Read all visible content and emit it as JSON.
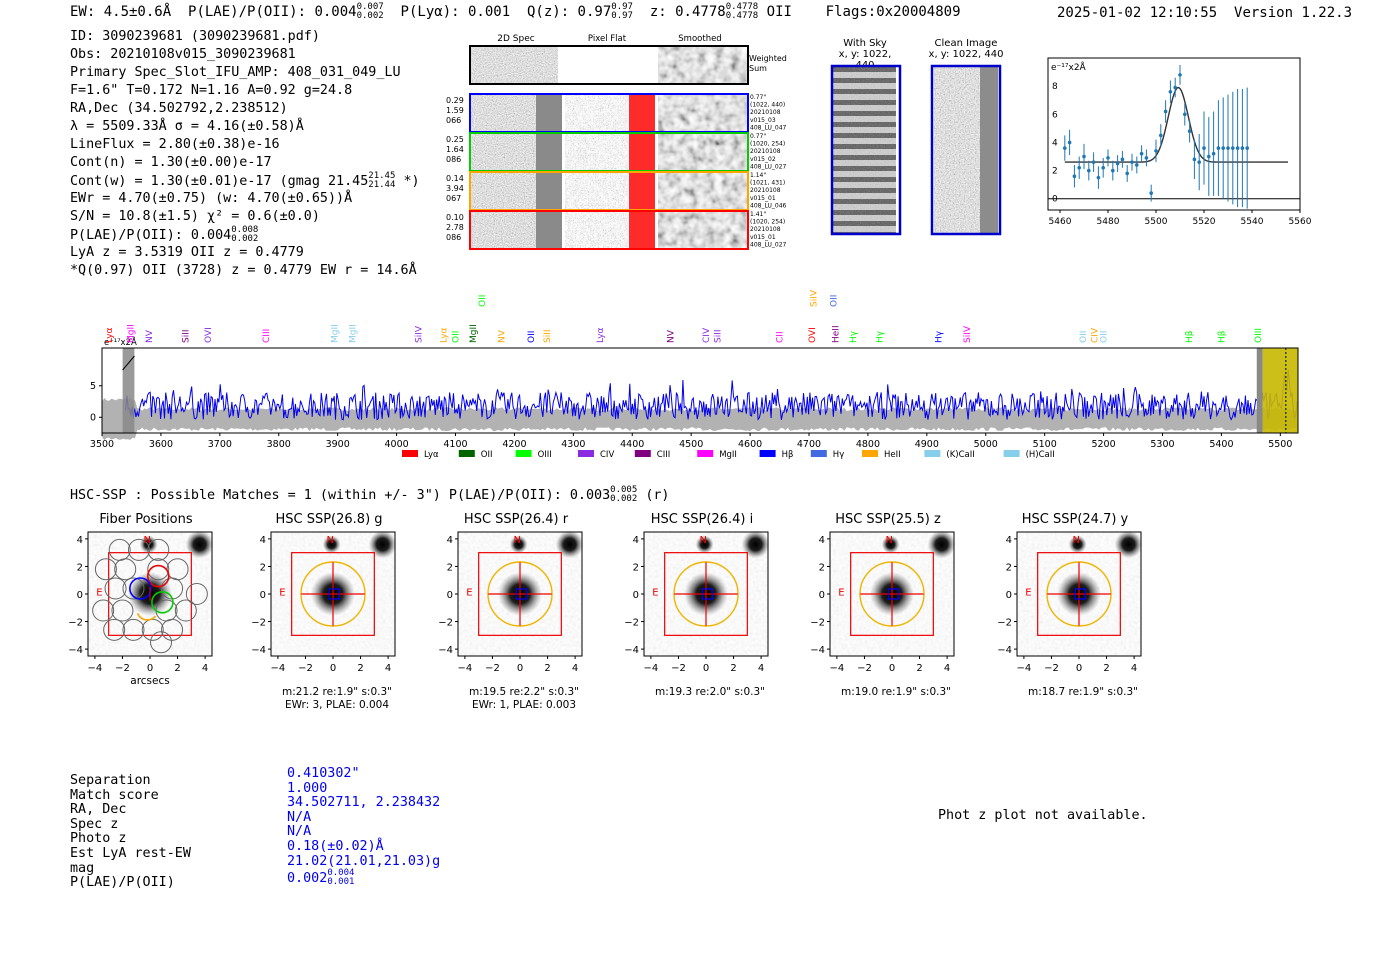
{
  "header": {
    "ew": "EW: 4.5±0.6Å",
    "plae": "P(LAE)/P(OII): 0.004",
    "plae_hi": "0.007",
    "plae_lo": "0.002",
    "plya": "P(Lyα): 0.001",
    "qz": "Q(z): 0.97",
    "qz_hi": "0.97",
    "qz_lo": "0.97",
    "z": "z: 0.4778",
    "z_hi": "0.4778",
    "z_lo": "0.4778",
    "z_line": "OII",
    "flags": "Flags:0x20004809",
    "datetime": "2025-01-02 12:10:55",
    "version": "Version 1.22.3"
  },
  "info": {
    "id": "ID: 3090239681 (3090239681.pdf)",
    "obs": "Obs: 20210108v015_3090239681",
    "primary": "Primary Spec_Slot_IFU_AMP: 408_031_049_LU",
    "params": "F=1.6\"  T=0.172  N=1.16  A=0.92  g=24.8",
    "radec": "RA,Dec (34.502792,2.238512)",
    "lambda": "λ = 5509.33Å  σ = 4.16(±0.58)Å",
    "lineflux": "LineFlux = 2.80(±0.38)e-16",
    "contn": "Cont(n) = 1.30(±0.00)e-17",
    "contw": "Cont(w) = 1.30(±0.01)e-17 (gmag 21.45",
    "contw_hi": "21.45",
    "contw_lo": "21.44",
    "contw_end": "*)",
    "ewr": "EWr = 4.70(±0.75) (w: 4.70(±0.65))Å",
    "sn": "S/N = 10.8(±1.5)  χ² = 0.6(±0.0)",
    "plae": "P(LAE)/P(OII): 0.004",
    "plae_hi": "0.008",
    "plae_lo": "0.002",
    "lyaz": "LyA z = 3.5319  OII z = 0.4779",
    "q": "*Q(0.97) OII (3728) z = 0.4779  EW r = 14.6Å"
  },
  "cutouts": {
    "col_titles": [
      "2D Spec",
      "Pixel Flat",
      "Smoothed"
    ],
    "weighted_label_1": "Weighted",
    "weighted_label_2": "Sum",
    "rows": [
      {
        "left": [
          "0.29",
          "1.59",
          "066"
        ],
        "right": [
          "0.77\"",
          "(1022, 440)",
          "20210108",
          "v015_03",
          "408_LU_047"
        ],
        "color": "#0000ff"
      },
      {
        "left": [
          "0.25",
          "1.64",
          "086"
        ],
        "right": [
          "0.77\"",
          "(1020, 254)",
          "20210108",
          "v015_02",
          "408_LU_027"
        ],
        "color": "#00cc00"
      },
      {
        "left": [
          "0.14",
          "3.94",
          "067"
        ],
        "right": [
          "1.14\"",
          "(1021, 431)",
          "20210108",
          "v015_01",
          "408_LU_046"
        ],
        "color": "#ffa500"
      },
      {
        "left": [
          "0.10",
          "2.78",
          "086"
        ],
        "right": [
          "1.41\"",
          "(1020, 254)",
          "20210108",
          "v015_01",
          "408_LU_027"
        ],
        "color": "#ff0000"
      }
    ],
    "with_sky_title": "With Sky",
    "with_sky_coords": "x, y: 1022, 440",
    "clean_title": "Clean Image",
    "clean_coords": "x, y: 1022, 440"
  },
  "zoom_chart_data": {
    "type": "scatter",
    "ylabel_text": "e⁻¹⁷x2Å",
    "xlim": [
      5455,
      5560
    ],
    "ylim": [
      -0.8,
      10
    ],
    "xticks": [
      5460,
      5480,
      5500,
      5520,
      5540,
      5560
    ],
    "yticks": [
      0,
      2,
      4,
      6,
      8
    ],
    "points": [
      [
        5462,
        3.6,
        0.9
      ],
      [
        5464,
        4.0,
        0.9
      ],
      [
        5466,
        1.6,
        0.8
      ],
      [
        5468,
        2.2,
        0.8
      ],
      [
        5470,
        3.0,
        0.9
      ],
      [
        5472,
        2.0,
        0.7
      ],
      [
        5474,
        2.6,
        0.7
      ],
      [
        5476,
        1.5,
        0.8
      ],
      [
        5478,
        2.2,
        0.7
      ],
      [
        5480,
        2.9,
        0.6
      ],
      [
        5482,
        2.0,
        0.7
      ],
      [
        5484,
        2.5,
        0.6
      ],
      [
        5486,
        2.8,
        0.6
      ],
      [
        5488,
        1.8,
        0.6
      ],
      [
        5490,
        2.6,
        0.6
      ],
      [
        5492,
        2.4,
        0.6
      ],
      [
        5494,
        3.2,
        0.6
      ],
      [
        5496,
        2.9,
        0.6
      ],
      [
        5498,
        0.4,
        0.6
      ],
      [
        5500,
        3.4,
        0.8
      ],
      [
        5502,
        4.5,
        0.8
      ],
      [
        5504,
        6.2,
        0.8
      ],
      [
        5506,
        7.6,
        0.8
      ],
      [
        5508,
        7.9,
        0.7
      ],
      [
        5510,
        8.8,
        0.7
      ],
      [
        5512,
        6.0,
        0.8
      ],
      [
        5514,
        4.8,
        0.8
      ],
      [
        5516,
        2.8,
        1.4
      ],
      [
        5518,
        2.6,
        2.0
      ],
      [
        5520,
        3.6,
        2.6
      ],
      [
        5522,
        3.0,
        2.8
      ],
      [
        5524,
        3.2,
        3.0
      ],
      [
        5526,
        3.6,
        3.4
      ],
      [
        5528,
        3.6,
        3.6
      ],
      [
        5530,
        3.6,
        3.8
      ],
      [
        5532,
        3.6,
        4.0
      ],
      [
        5534,
        3.6,
        4.2
      ],
      [
        5536,
        3.6,
        4.2
      ],
      [
        5538,
        3.6,
        4.3
      ]
    ],
    "fit": {
      "continuum": 2.6,
      "amplitude": 5.3,
      "center": 5509.3,
      "sigma": 4.2,
      "x_end": 5555
    }
  },
  "chart_data": {
    "type": "line",
    "title": "",
    "xlabel": "",
    "ylabel_text": "e⁻¹⁷x2Å",
    "xlim": [
      3500,
      5530
    ],
    "ylim": [
      -2.5,
      11
    ],
    "xticks": [
      3500,
      3600,
      3700,
      3800,
      3900,
      4000,
      4100,
      4200,
      4300,
      4400,
      4500,
      4600,
      4700,
      4800,
      4900,
      5000,
      5100,
      5200,
      5300,
      5400,
      5500
    ],
    "yticks": [
      0,
      5
    ],
    "series": [
      {
        "name": "spectrum",
        "color": "#0000ee",
        "noise_level": 2.2,
        "seed": 7
      },
      {
        "name": "error",
        "color": "#aaaaaa",
        "level": 1.0
      }
    ],
    "emission_line_marker": 5509.3,
    "legend": [
      {
        "label": "Lyα",
        "color": "#ff0000"
      },
      {
        "label": "OII",
        "color": "#006400"
      },
      {
        "label": "OIII",
        "color": "#00ff00"
      },
      {
        "label": "CIV",
        "color": "#8a2be2"
      },
      {
        "label": "CIII",
        "color": "#800080"
      },
      {
        "label": "MgII",
        "color": "#ff00ff"
      },
      {
        "label": "Hβ",
        "color": "#0000ff"
      },
      {
        "label": "Hγ",
        "color": "#4169e1"
      },
      {
        "label": "HeII",
        "color": "#ffa500"
      },
      {
        "label": "(K)CaII",
        "color": "#87ceeb"
      },
      {
        "label": "(H)CaII",
        "color": "#87ceeb"
      }
    ],
    "line_labels": [
      {
        "label": "Lyα",
        "wave": 3512,
        "color": "#ff0000",
        "tier": 1
      },
      {
        "label": "MgII",
        "wave": 3548,
        "color": "#ff00ff",
        "tier": 1
      },
      {
        "label": "NV",
        "wave": 3580,
        "color": "#8a2be2",
        "tier": 1
      },
      {
        "label": "SiII",
        "wave": 3642,
        "color": "#800080",
        "tier": 1
      },
      {
        "label": "OVI",
        "wave": 3680,
        "color": "#8a2be2",
        "tier": 1
      },
      {
        "label": "CIII",
        "wave": 3778,
        "color": "#ff00ff",
        "tier": 1
      },
      {
        "label": "MgII",
        "wave": 3895,
        "color": "#87ceeb",
        "tier": 1
      },
      {
        "label": "MgII",
        "wave": 3925,
        "color": "#87ceeb",
        "tier": 1
      },
      {
        "label": "SiIV",
        "wave": 4037,
        "color": "#8a2be2",
        "tier": 1
      },
      {
        "label": "Lyα",
        "wave": 4080,
        "color": "#ffa500",
        "tier": 1
      },
      {
        "label": "OII",
        "wave": 4100,
        "color": "#00ff00",
        "tier": 1
      },
      {
        "label": "MgII",
        "wave": 4130,
        "color": "#006400",
        "tier": 1
      },
      {
        "label": "OII",
        "wave": 4145,
        "color": "#00ff00",
        "tier": 2
      },
      {
        "label": "NV",
        "wave": 4178,
        "color": "#ffa500",
        "tier": 1
      },
      {
        "label": "OII",
        "wave": 4228,
        "color": "#0000ff",
        "tier": 1
      },
      {
        "label": "SiII",
        "wave": 4255,
        "color": "#ffa500",
        "tier": 1
      },
      {
        "label": "Lyα",
        "wave": 4345,
        "color": "#8a2be2",
        "tier": 1
      },
      {
        "label": "NV",
        "wave": 4465,
        "color": "#800080",
        "tier": 1
      },
      {
        "label": "CIV",
        "wave": 4525,
        "color": "#8a2be2",
        "tier": 1
      },
      {
        "label": "SiII",
        "wave": 4545,
        "color": "#8a2be2",
        "tier": 1
      },
      {
        "label": "CII",
        "wave": 4650,
        "color": "#ff00ff",
        "tier": 1
      },
      {
        "label": "SiIV",
        "wave": 4708,
        "color": "#ffa500",
        "tier": 2
      },
      {
        "label": "OVI",
        "wave": 4705,
        "color": "#ff0000",
        "tier": 1
      },
      {
        "label": "OII",
        "wave": 4742,
        "color": "#4169e1",
        "tier": 2
      },
      {
        "label": "HeII",
        "wave": 4745,
        "color": "#800080",
        "tier": 1
      },
      {
        "label": "Hγ",
        "wave": 4775,
        "color": "#00ff00",
        "tier": 1
      },
      {
        "label": "Hγ",
        "wave": 4820,
        "color": "#00ff00",
        "tier": 1
      },
      {
        "label": "Hγ",
        "wave": 4920,
        "color": "#0000ff",
        "tier": 1
      },
      {
        "label": "SiIV",
        "wave": 4968,
        "color": "#ff00ff",
        "tier": 1
      },
      {
        "label": "OII",
        "wave": 5165,
        "color": "#87ceeb",
        "tier": 1
      },
      {
        "label": "CIV",
        "wave": 5185,
        "color": "#ffa500",
        "tier": 1
      },
      {
        "label": "OII",
        "wave": 5200,
        "color": "#87ceeb",
        "tier": 1
      },
      {
        "label": "Hβ",
        "wave": 5345,
        "color": "#00ff00",
        "tier": 1
      },
      {
        "label": "Hβ",
        "wave": 5400,
        "color": "#00ff00",
        "tier": 1
      },
      {
        "label": "OIII",
        "wave": 5462,
        "color": "#00ff00",
        "tier": 1
      }
    ]
  },
  "hsc": {
    "title": "HSC-SSP : Possible Matches = 1 (within +/- 3\")  P(LAE)/P(OII): 0.003",
    "title_hi": "0.005",
    "title_lo": "0.002",
    "title_end": "(r)",
    "axis_ticks": [
      "4",
      "2",
      "0",
      "−2",
      "−4"
    ],
    "x_ticks": [
      "−4",
      "−2",
      "0",
      "2",
      "4"
    ],
    "x_label": "arcsecs",
    "north": "N",
    "east": "E",
    "panels": [
      {
        "title": "Fiber Positions",
        "cap1": "",
        "cap2": ""
      },
      {
        "title": "HSC SSP(26.8) g",
        "cap1": "m:21.2  re:1.9\"  s:0.3\"",
        "cap2": "EWr: 3, PLAE: 0.004"
      },
      {
        "title": "HSC SSP(26.4) r",
        "cap1": "m:19.5  re:2.2\"  s:0.3\"",
        "cap2": "EWr: 1, PLAE: 0.003"
      },
      {
        "title": "HSC SSP(26.4) i",
        "cap1": "m:19.3  re:2.0\"  s:0.3\"",
        "cap2": ""
      },
      {
        "title": "HSC SSP(25.5) z",
        "cap1": "m:19.0  re:1.9\"  s:0.3\"",
        "cap2": ""
      },
      {
        "title": "HSC SSP(24.7) y",
        "cap1": "m:18.7  re:1.9\"  s:0.3\"",
        "cap2": ""
      }
    ]
  },
  "separation": {
    "labels": [
      "Separation",
      "Match score",
      "RA, Dec",
      "Spec z",
      "Photo z",
      "Est LyA rest-EW",
      "mag",
      "P(LAE)/P(OII)"
    ],
    "values": [
      "0.410302\"",
      "1.000",
      "34.502711, 2.238432",
      "N/A",
      "N/A",
      "0.18(±0.02)Å",
      "21.02(21.01,21.03)g",
      "0.002"
    ],
    "plae_hi": "0.004",
    "plae_lo": "0.001"
  },
  "phot_z": "Phot z plot not available."
}
